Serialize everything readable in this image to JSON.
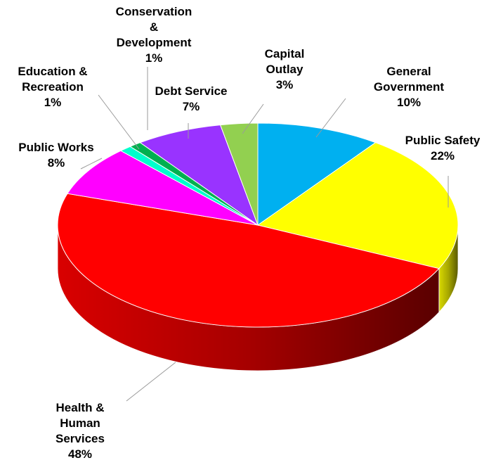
{
  "chart_data": {
    "type": "pie",
    "title": "",
    "legend": "none",
    "slices": [
      {
        "label": [
          "General",
          "Government"
        ],
        "pct_label": "10%",
        "value": 10,
        "color": "#00b0f0"
      },
      {
        "label": [
          "Public Safety"
        ],
        "pct_label": "22%",
        "value": 22,
        "color": "#ffff00"
      },
      {
        "label": [
          "Health &",
          "Human",
          "Services"
        ],
        "pct_label": "48%",
        "value": 48,
        "color": "#ff0000"
      },
      {
        "label": [
          "Public Works"
        ],
        "pct_label": "8%",
        "value": 8,
        "color": "#ff00ff"
      },
      {
        "label": [
          "Education &",
          "Recreation"
        ],
        "pct_label": "1%",
        "value": 1,
        "color": "#00ffcc"
      },
      {
        "label": [
          "Conservation",
          "&",
          "Development"
        ],
        "pct_label": "1%",
        "value": 1,
        "color": "#00b050"
      },
      {
        "label": [
          "Debt Service"
        ],
        "pct_label": "7%",
        "value": 7,
        "color": "#9933ff"
      },
      {
        "label": [
          "Capital",
          "Outlay"
        ],
        "pct_label": "3%",
        "value": 3,
        "color": "#92d050"
      }
    ]
  }
}
